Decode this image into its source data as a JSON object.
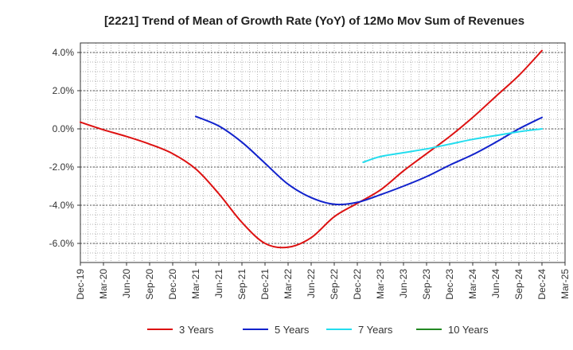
{
  "chart_data": {
    "type": "line",
    "title": "[2221]  Trend of Mean of Growth Rate (YoY) of 12Mo Mov Sum of Revenues",
    "xlabel": "",
    "ylabel": "",
    "ylim": [
      -7.0,
      4.5
    ],
    "y_ticks": [
      4.0,
      2.0,
      0.0,
      -2.0,
      -4.0,
      -6.0
    ],
    "y_tick_labels": [
      "4.0%",
      "2.0%",
      "0.0%",
      "-2.0%",
      "-4.0%",
      "-6.0%"
    ],
    "x_ticks": [
      "Dec-19",
      "Mar-20",
      "Jun-20",
      "Sep-20",
      "Dec-20",
      "Mar-21",
      "Jun-21",
      "Sep-21",
      "Dec-21",
      "Mar-22",
      "Jun-22",
      "Sep-22",
      "Dec-22",
      "Mar-23",
      "Jun-23",
      "Sep-23",
      "Dec-23",
      "Mar-24",
      "Jun-24",
      "Sep-24",
      "Dec-24",
      "Mar-25"
    ],
    "grid": true,
    "legend_position": "bottom",
    "series": [
      {
        "name": "3 Years",
        "color": "#dd1111",
        "x": [
          0,
          1,
          2,
          3,
          4,
          5,
          6,
          7,
          8,
          9,
          10,
          11,
          12,
          13,
          14,
          15,
          16,
          17,
          18,
          19,
          20
        ],
        "values": [
          0.35,
          -0.05,
          -0.4,
          -0.8,
          -1.3,
          -2.1,
          -3.4,
          -4.9,
          -6.0,
          -6.2,
          -5.7,
          -4.6,
          -3.9,
          -3.2,
          -2.2,
          -1.3,
          -0.4,
          0.6,
          1.7,
          2.8,
          4.1
        ]
      },
      {
        "name": "5 Years",
        "color": "#1122cc",
        "x": [
          5,
          6,
          7,
          8,
          9,
          10,
          11,
          12,
          13,
          14,
          15,
          16,
          17,
          18,
          19,
          20
        ],
        "values": [
          0.65,
          0.15,
          -0.7,
          -1.8,
          -2.9,
          -3.6,
          -3.95,
          -3.85,
          -3.45,
          -3.0,
          -2.5,
          -1.9,
          -1.35,
          -0.7,
          0.0,
          0.6
        ]
      },
      {
        "name": "7 Years",
        "color": "#22ddee",
        "x": [
          12.25,
          13,
          14,
          15,
          16,
          17,
          18,
          19,
          20
        ],
        "values": [
          -1.75,
          -1.45,
          -1.25,
          -1.05,
          -0.8,
          -0.55,
          -0.35,
          -0.15,
          0.0
        ]
      },
      {
        "name": "10 Years",
        "color": "#228822",
        "x": [],
        "values": []
      }
    ]
  }
}
